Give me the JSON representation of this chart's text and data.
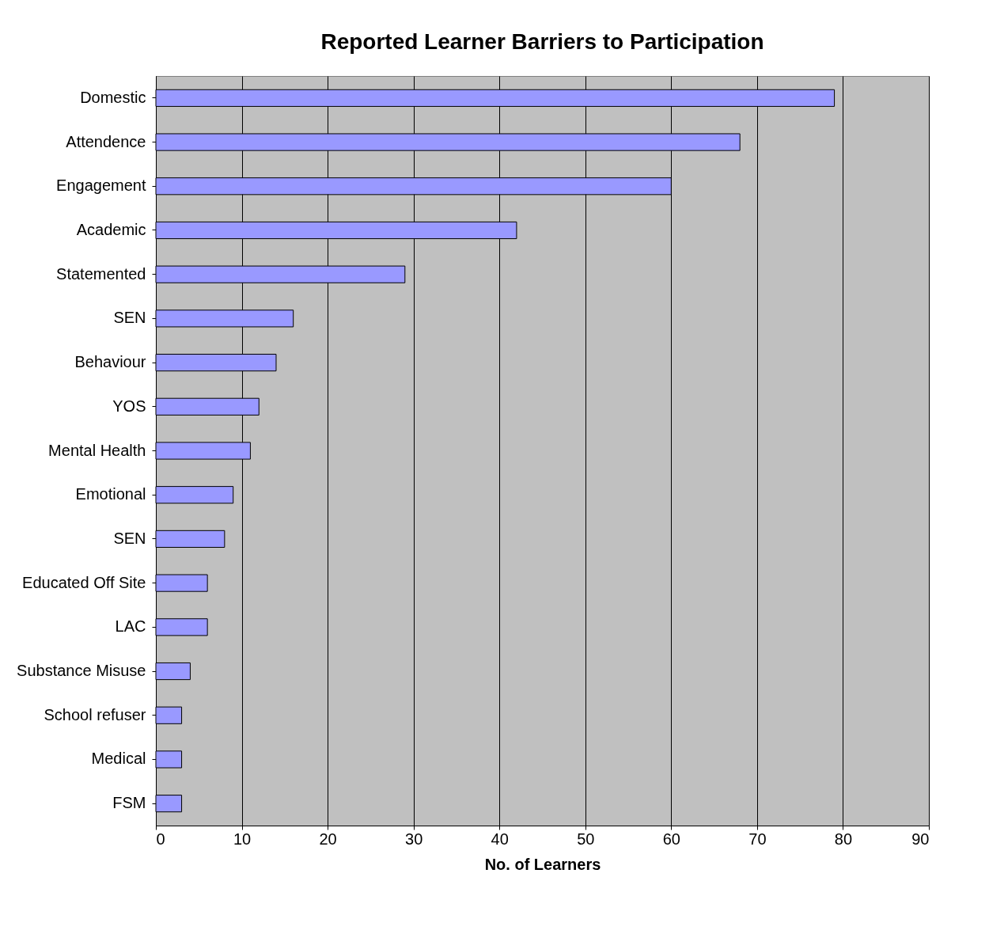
{
  "chart_data": {
    "type": "bar",
    "orientation": "horizontal",
    "title": "Reported Learner Barriers to Participation",
    "xlabel": "No. of Learners",
    "categories": [
      "Domestic",
      "Attendence",
      "Engagement",
      "Academic",
      "Statemented",
      "SEN",
      "Behaviour",
      "YOS",
      "Mental Health",
      "Emotional",
      "SEN",
      "Educated Off Site",
      "LAC",
      "Substance Misuse",
      "School refuser",
      "Medical",
      "FSM"
    ],
    "values": [
      79,
      68,
      60,
      42,
      29,
      16,
      14,
      12,
      11,
      9,
      8,
      6,
      6,
      4,
      3,
      3,
      3
    ],
    "color": "#9999ff",
    "xlim": [
      0,
      90
    ],
    "xticks": [
      0,
      10,
      20,
      30,
      40,
      50,
      60,
      70,
      80,
      90
    ],
    "grid": "x"
  }
}
